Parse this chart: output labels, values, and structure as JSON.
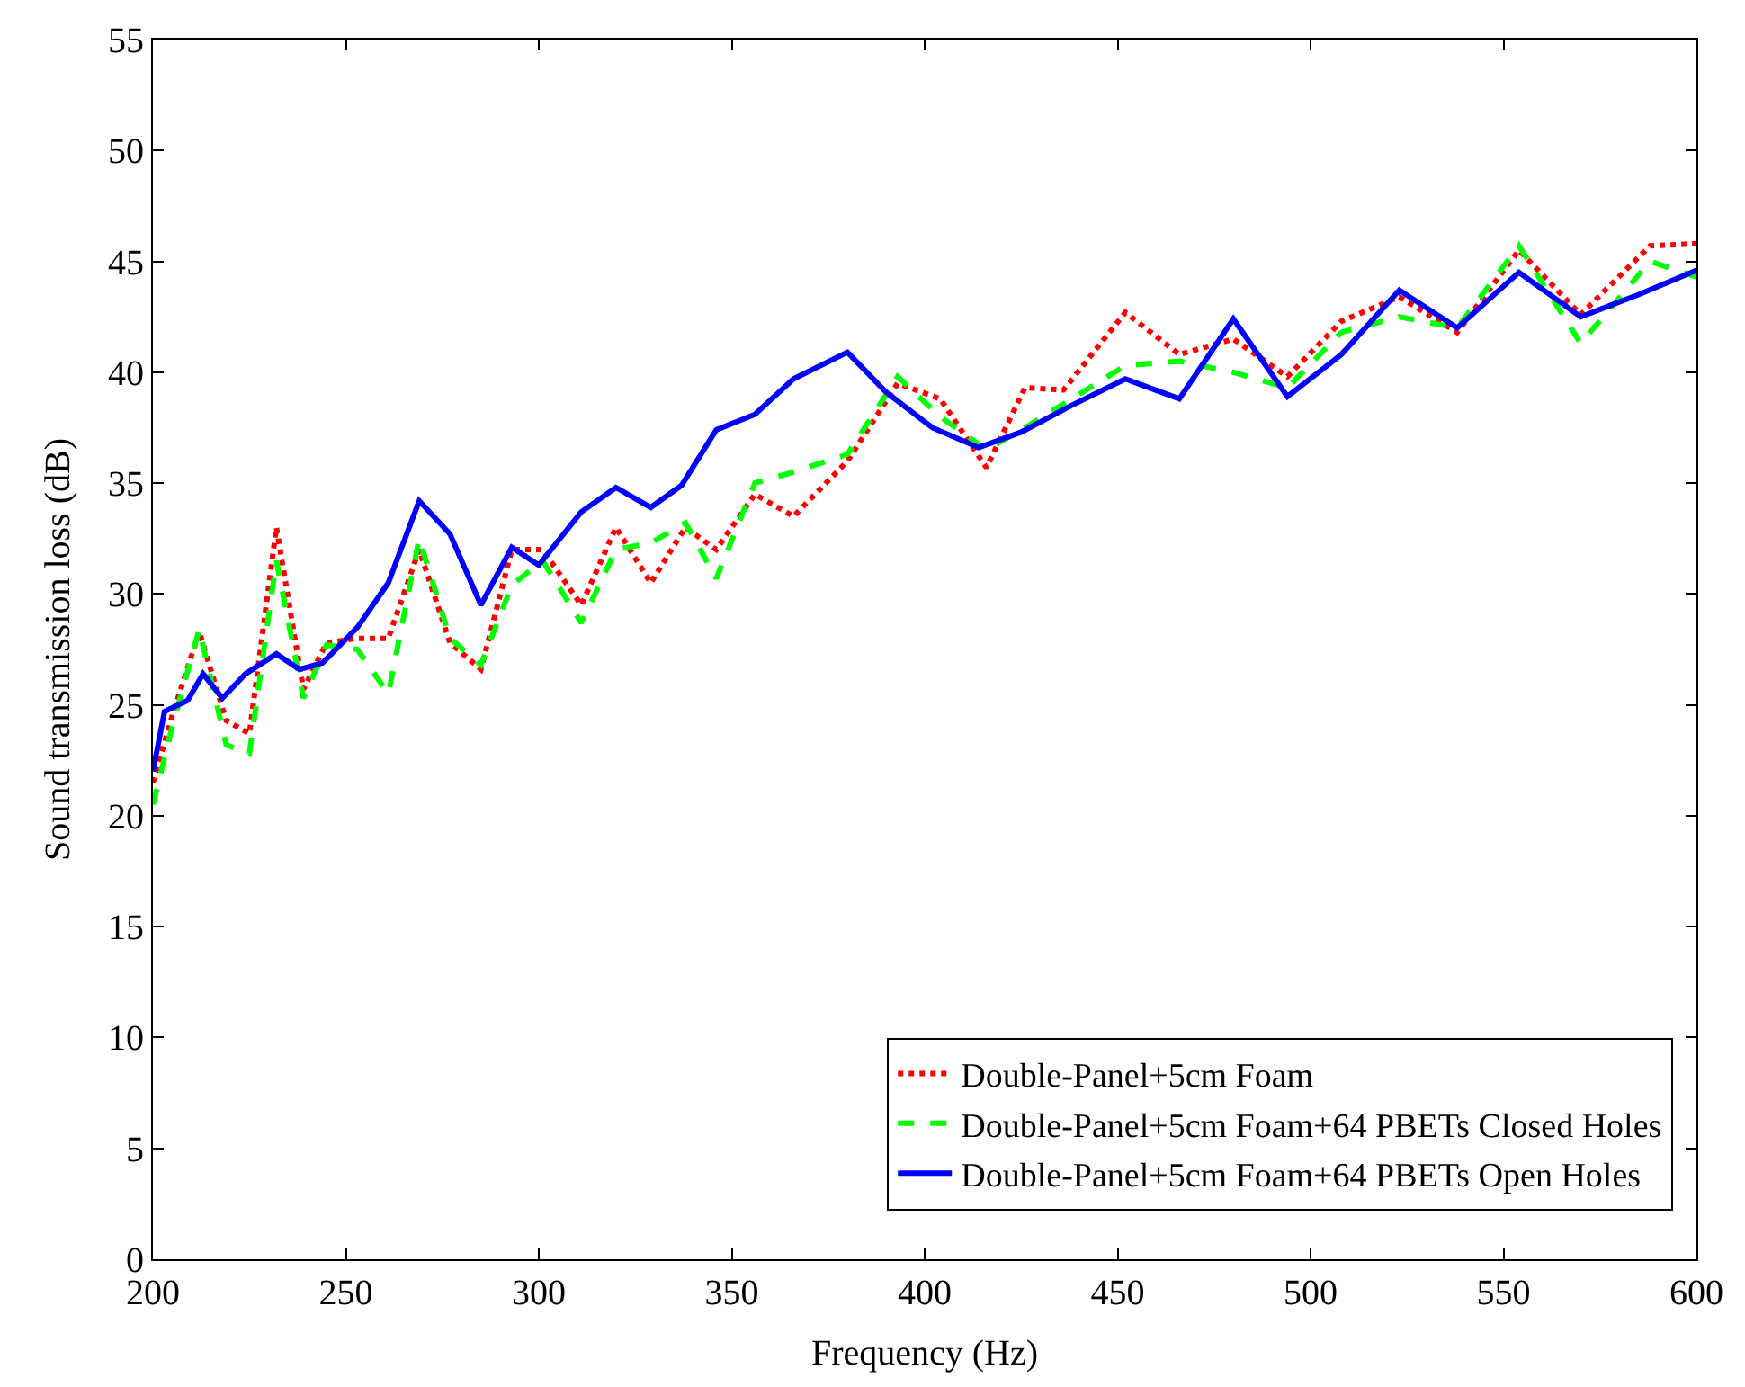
{
  "chart_data": {
    "type": "line",
    "xlabel": "Frequency (Hz)",
    "ylabel": "Sound transmission loss (dB)",
    "xlim": [
      200,
      600
    ],
    "xticks": [
      200,
      250,
      300,
      350,
      400,
      450,
      500,
      550,
      600
    ],
    "ylim": [
      0,
      55
    ],
    "yticks": [
      0,
      5,
      10,
      15,
      20,
      25,
      30,
      35,
      40,
      45,
      50,
      55
    ],
    "legend": "bottom right",
    "marker": "none",
    "series": [
      {
        "name": "Double-Panel+5cm Foam",
        "color": "#ff0000",
        "line_style": "dotted",
        "x": [
          200,
          205,
          212,
          219,
          225,
          232,
          239,
          245,
          253,
          261,
          269,
          277,
          285,
          293,
          301,
          311,
          320,
          329,
          338,
          346,
          356,
          366,
          380,
          393,
          404,
          416,
          426,
          436,
          452,
          466,
          480,
          494,
          508,
          523,
          538,
          554,
          570,
          588,
          600
        ],
        "values": [
          21.5,
          24.5,
          28.3,
          24.3,
          23.7,
          33,
          25.7,
          27.8,
          28,
          28,
          32,
          27.8,
          26.6,
          32,
          32,
          29.5,
          33,
          30.5,
          33,
          32,
          34.5,
          33.5,
          36,
          39.5,
          38.8,
          35.7,
          39.3,
          39.2,
          42.7,
          40.8,
          41.5,
          39.8,
          42.3,
          43.4,
          41.8,
          45.5,
          42.6,
          45.7,
          45.8
        ]
      },
      {
        "name": "Double-Panel+5cm Foam+64 PBETs Closed Holes",
        "color": "#00ff00",
        "line_style": "dashed",
        "x": [
          200,
          205,
          212,
          219,
          225,
          232,
          239,
          245,
          253,
          261,
          269,
          277,
          285,
          293,
          301,
          311,
          320,
          329,
          338,
          346,
          356,
          366,
          380,
          393,
          404,
          416,
          426,
          440,
          452,
          466,
          480,
          494,
          508,
          523,
          538,
          554,
          570,
          588,
          600
        ],
        "values": [
          20.5,
          24,
          28.4,
          23.2,
          22.8,
          31.5,
          25.3,
          27.7,
          27.5,
          25.5,
          32.5,
          28,
          26.8,
          30.4,
          31.5,
          28.7,
          32,
          32.3,
          33.2,
          30.7,
          35,
          35.5,
          36.3,
          39.8,
          38,
          36.5,
          37.5,
          39,
          40.3,
          40.5,
          40,
          39.3,
          41.8,
          42.5,
          42,
          45.7,
          41.3,
          45,
          44.3
        ]
      },
      {
        "name": "Double-Panel+5cm Foam+64 PBETs Open Holes",
        "color": "#0000ff",
        "line_style": "solid",
        "x": [
          200,
          203,
          209,
          213,
          218,
          224,
          232,
          238,
          244,
          253,
          261,
          269,
          277,
          285,
          293,
          300,
          311,
          320,
          329,
          337,
          346,
          356,
          366,
          380,
          390,
          402,
          414,
          425,
          438,
          452,
          466,
          480,
          494,
          508,
          523,
          538,
          554,
          570,
          585,
          600
        ],
        "values": [
          22,
          24.7,
          25.2,
          26.4,
          25.3,
          26.4,
          27.3,
          26.6,
          26.9,
          28.5,
          30.5,
          34.2,
          32.7,
          29.5,
          32.1,
          31.3,
          33.7,
          34.8,
          33.9,
          34.9,
          37.4,
          38.1,
          39.7,
          40.9,
          39.1,
          37.5,
          36.6,
          37.3,
          38.5,
          39.7,
          38.8,
          42.4,
          38.9,
          40.8,
          43.7,
          42,
          44.5,
          42.5,
          43.5,
          44.6
        ]
      }
    ]
  }
}
